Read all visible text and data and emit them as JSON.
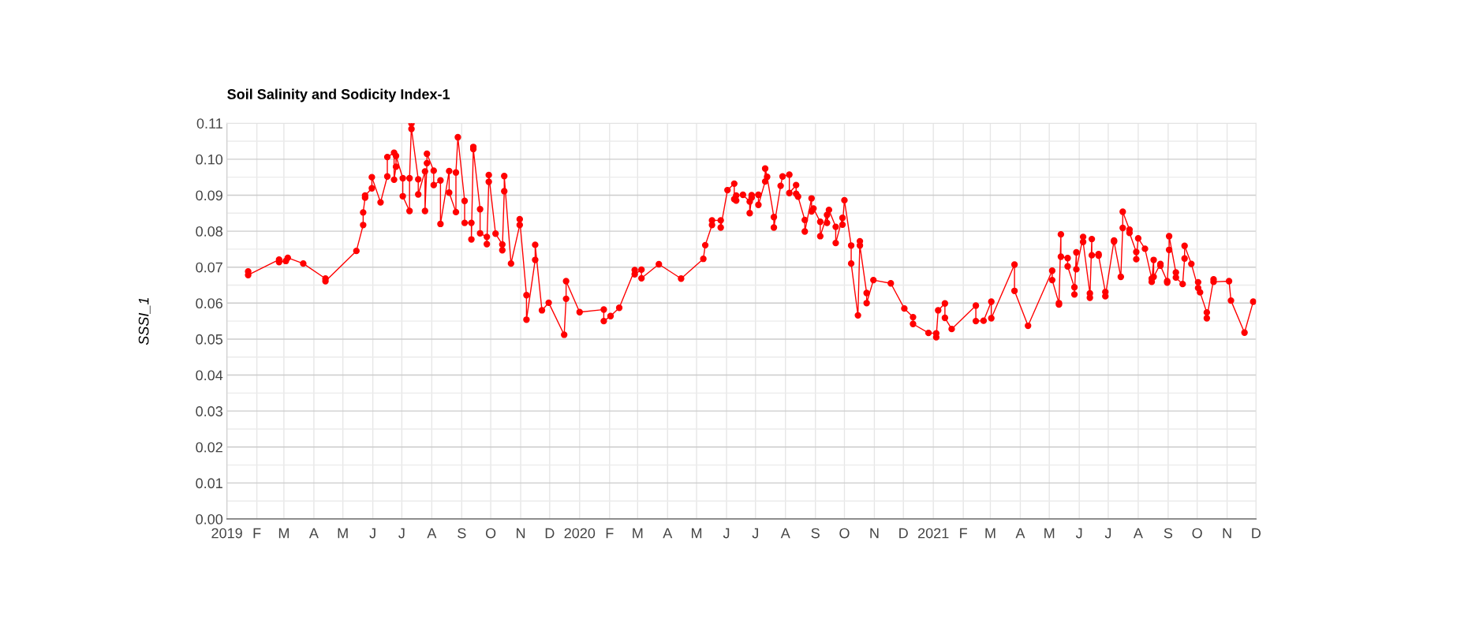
{
  "chart_data": {
    "type": "line",
    "title": "Soil Salinity and Sodicity Index-1",
    "ylabel": "SSSI_1",
    "x": [
      "2019-01-23",
      "2019-01-23",
      "2019-02-24",
      "2019-02-24",
      "2019-03-03",
      "2019-03-05",
      "2019-03-21",
      "2019-04-13",
      "2019-04-13",
      "2019-05-15",
      "2019-05-22",
      "2019-05-22",
      "2019-05-24",
      "2019-05-24",
      "2019-05-31",
      "2019-05-31",
      "2019-06-09",
      "2019-06-16",
      "2019-06-16",
      "2019-06-23",
      "2019-06-23",
      "2019-06-25",
      "2019-06-25",
      "2019-07-02",
      "2019-07-02",
      "2019-07-09",
      "2019-07-09",
      "2019-07-11",
      "2019-07-11",
      "2019-07-18",
      "2019-07-18",
      "2019-07-25",
      "2019-07-25",
      "2019-07-27",
      "2019-07-27",
      "2019-08-03",
      "2019-08-03",
      "2019-08-10",
      "2019-08-10",
      "2019-08-19",
      "2019-08-19",
      "2019-08-26",
      "2019-08-26",
      "2019-08-28",
      "2019-09-04",
      "2019-09-04",
      "2019-09-11",
      "2019-09-11",
      "2019-09-13",
      "2019-09-13",
      "2019-09-20",
      "2019-09-20",
      "2019-09-27",
      "2019-09-27",
      "2019-09-29",
      "2019-09-29",
      "2019-10-06",
      "2019-10-13",
      "2019-10-13",
      "2019-10-15",
      "2019-10-15",
      "2019-10-22",
      "2019-10-31",
      "2019-10-31",
      "2019-11-07",
      "2019-11-07",
      "2019-11-16",
      "2019-11-16",
      "2019-11-23",
      "2019-11-30",
      "2019-12-16",
      "2019-12-18",
      "2019-12-18",
      "2020-01-01",
      "2020-01-26",
      "2020-01-26",
      "2020-02-02",
      "2020-02-11",
      "2020-02-27",
      "2020-02-27",
      "2020-03-05",
      "2020-03-05",
      "2020-03-23",
      "2020-04-15",
      "2020-05-08",
      "2020-05-10",
      "2020-05-17",
      "2020-05-17",
      "2020-05-26",
      "2020-05-26",
      "2020-06-02",
      "2020-06-09",
      "2020-06-09",
      "2020-06-11",
      "2020-06-11",
      "2020-06-18",
      "2020-06-25",
      "2020-06-25",
      "2020-06-27",
      "2020-06-27",
      "2020-07-04",
      "2020-07-04",
      "2020-07-11",
      "2020-07-11",
      "2020-07-13",
      "2020-07-20",
      "2020-07-20",
      "2020-07-27",
      "2020-07-29",
      "2020-08-05",
      "2020-08-05",
      "2020-08-12",
      "2020-08-12",
      "2020-08-14",
      "2020-08-21",
      "2020-08-21",
      "2020-08-28",
      "2020-08-28",
      "2020-08-30",
      "2020-09-06",
      "2020-09-06",
      "2020-09-13",
      "2020-09-13",
      "2020-09-15",
      "2020-09-22",
      "2020-09-22",
      "2020-09-29",
      "2020-09-29",
      "2020-10-01",
      "2020-10-08",
      "2020-10-08",
      "2020-10-15",
      "2020-10-17",
      "2020-10-17",
      "2020-10-24",
      "2020-10-24",
      "2020-10-31",
      "2020-11-18",
      "2020-12-02",
      "2020-12-11",
      "2020-12-11",
      "2020-12-27",
      "2021-01-04",
      "2021-01-04",
      "2021-01-06",
      "2021-01-13",
      "2021-01-13",
      "2021-01-20",
      "2021-02-14",
      "2021-02-14",
      "2021-02-22",
      "2021-03-02",
      "2021-03-02",
      "2021-03-26",
      "2021-03-26",
      "2021-04-09",
      "2021-05-04",
      "2021-05-04",
      "2021-05-11",
      "2021-05-11",
      "2021-05-13",
      "2021-05-13",
      "2021-05-20",
      "2021-05-20",
      "2021-05-27",
      "2021-05-27",
      "2021-05-29",
      "2021-05-29",
      "2021-06-05",
      "2021-06-05",
      "2021-06-12",
      "2021-06-12",
      "2021-06-14",
      "2021-06-14",
      "2021-06-21",
      "2021-06-21",
      "2021-06-28",
      "2021-06-28",
      "2021-07-07",
      "2021-07-07",
      "2021-07-14",
      "2021-07-16",
      "2021-07-16",
      "2021-07-23",
      "2021-07-23",
      "2021-07-30",
      "2021-07-30",
      "2021-08-01",
      "2021-08-08",
      "2021-08-15",
      "2021-08-15",
      "2021-08-17",
      "2021-08-17",
      "2021-08-24",
      "2021-08-24",
      "2021-08-31",
      "2021-08-31",
      "2021-09-02",
      "2021-09-02",
      "2021-09-09",
      "2021-09-09",
      "2021-09-16",
      "2021-09-18",
      "2021-09-18",
      "2021-09-25",
      "2021-10-02",
      "2021-10-02",
      "2021-10-04",
      "2021-10-11",
      "2021-10-11",
      "2021-10-18",
      "2021-10-18",
      "2021-11-03",
      "2021-11-05",
      "2021-11-19",
      "2021-11-28"
    ],
    "series": [
      {
        "color": "#ff0000",
        "values": [
          0.0688,
          0.0678,
          0.0721,
          0.0714,
          0.0717,
          0.0726,
          0.071,
          0.0668,
          0.0661,
          0.0745,
          0.0817,
          0.0852,
          0.0893,
          0.0899,
          0.0919,
          0.095,
          0.088,
          0.0952,
          0.1006,
          0.1018,
          0.0943,
          0.0979,
          0.1009,
          0.0947,
          0.0897,
          0.0856,
          0.0947,
          0.1099,
          0.1084,
          0.0944,
          0.0902,
          0.0966,
          0.0856,
          0.0989,
          0.1015,
          0.0968,
          0.0928,
          0.0941,
          0.082,
          0.0967,
          0.0907,
          0.0853,
          0.0963,
          0.1061,
          0.0884,
          0.0823,
          0.0823,
          0.0777,
          0.1034,
          0.1028,
          0.0861,
          0.0794,
          0.0784,
          0.0764,
          0.0937,
          0.0956,
          0.0793,
          0.0763,
          0.0747,
          0.0911,
          0.0953,
          0.071,
          0.0817,
          0.0833,
          0.0622,
          0.0554,
          0.072,
          0.0762,
          0.058,
          0.0601,
          0.0512,
          0.0612,
          0.0661,
          0.0575,
          0.0582,
          0.055,
          0.0564,
          0.0587,
          0.0692,
          0.068,
          0.0693,
          0.0669,
          0.0708,
          0.0668,
          0.0723,
          0.0761,
          0.0817,
          0.083,
          0.083,
          0.081,
          0.0914,
          0.0932,
          0.0889,
          0.0885,
          0.0899,
          0.0901,
          0.0882,
          0.085,
          0.0893,
          0.09,
          0.0901,
          0.0873,
          0.0938,
          0.0974,
          0.0951,
          0.0839,
          0.081,
          0.0926,
          0.0952,
          0.0957,
          0.0906,
          0.0928,
          0.0904,
          0.0896,
          0.0831,
          0.0799,
          0.0891,
          0.0855,
          0.0863,
          0.0826,
          0.0786,
          0.0845,
          0.0823,
          0.0859,
          0.0812,
          0.0767,
          0.0837,
          0.0818,
          0.0886,
          0.076,
          0.071,
          0.0566,
          0.0772,
          0.076,
          0.0628,
          0.06,
          0.0664,
          0.0655,
          0.0585,
          0.0561,
          0.0542,
          0.0517,
          0.0516,
          0.0505,
          0.058,
          0.0599,
          0.0559,
          0.0528,
          0.0593,
          0.055,
          0.0551,
          0.0604,
          0.0558,
          0.0707,
          0.0634,
          0.0537,
          0.069,
          0.0664,
          0.06,
          0.0596,
          0.0791,
          0.0729,
          0.0725,
          0.0702,
          0.0644,
          0.0624,
          0.0741,
          0.0694,
          0.0784,
          0.077,
          0.0627,
          0.0615,
          0.0778,
          0.0733,
          0.0736,
          0.0732,
          0.0631,
          0.0619,
          0.0774,
          0.0771,
          0.0673,
          0.0809,
          0.0854,
          0.0804,
          0.0795,
          0.0742,
          0.0722,
          0.078,
          0.0751,
          0.0668,
          0.0659,
          0.072,
          0.0673,
          0.0709,
          0.0704,
          0.0661,
          0.0657,
          0.0748,
          0.0786,
          0.0685,
          0.0671,
          0.0653,
          0.0724,
          0.0759,
          0.0709,
          0.0642,
          0.0658,
          0.063,
          0.0574,
          0.0558,
          0.0666,
          0.0659,
          0.0661,
          0.0607,
          0.0518,
          0.0604
        ]
      }
    ],
    "xlim": [
      "2019-01-01",
      "2021-12-01"
    ],
    "xticks": [
      {
        "value": "2019-01-01",
        "label": "2019"
      },
      {
        "value": "2019-02-01",
        "label": "F"
      },
      {
        "value": "2019-03-01",
        "label": "M"
      },
      {
        "value": "2019-04-01",
        "label": "A"
      },
      {
        "value": "2019-05-01",
        "label": "M"
      },
      {
        "value": "2019-06-01",
        "label": "J"
      },
      {
        "value": "2019-07-01",
        "label": "J"
      },
      {
        "value": "2019-08-01",
        "label": "A"
      },
      {
        "value": "2019-09-01",
        "label": "S"
      },
      {
        "value": "2019-10-01",
        "label": "O"
      },
      {
        "value": "2019-11-01",
        "label": "N"
      },
      {
        "value": "2019-12-01",
        "label": "D"
      },
      {
        "value": "2020-01-01",
        "label": "2020"
      },
      {
        "value": "2020-02-01",
        "label": "F"
      },
      {
        "value": "2020-03-01",
        "label": "M"
      },
      {
        "value": "2020-04-01",
        "label": "A"
      },
      {
        "value": "2020-05-01",
        "label": "M"
      },
      {
        "value": "2020-06-01",
        "label": "J"
      },
      {
        "value": "2020-07-01",
        "label": "J"
      },
      {
        "value": "2020-08-01",
        "label": "A"
      },
      {
        "value": "2020-09-01",
        "label": "S"
      },
      {
        "value": "2020-10-01",
        "label": "O"
      },
      {
        "value": "2020-11-01",
        "label": "N"
      },
      {
        "value": "2020-12-01",
        "label": "D"
      },
      {
        "value": "2021-01-01",
        "label": "2021"
      },
      {
        "value": "2021-02-01",
        "label": "F"
      },
      {
        "value": "2021-03-01",
        "label": "M"
      },
      {
        "value": "2021-04-01",
        "label": "A"
      },
      {
        "value": "2021-05-01",
        "label": "M"
      },
      {
        "value": "2021-06-01",
        "label": "J"
      },
      {
        "value": "2021-07-01",
        "label": "J"
      },
      {
        "value": "2021-08-01",
        "label": "A"
      },
      {
        "value": "2021-09-01",
        "label": "S"
      },
      {
        "value": "2021-10-01",
        "label": "O"
      },
      {
        "value": "2021-11-01",
        "label": "N"
      },
      {
        "value": "2021-12-01",
        "label": "D"
      }
    ],
    "ylim": [
      0,
      0.11
    ],
    "yticks": [
      {
        "value": 0,
        "label": "0.00"
      },
      {
        "value": 0.005,
        "label": null
      },
      {
        "value": 0.01,
        "label": "0.01"
      },
      {
        "value": 0.015,
        "label": null
      },
      {
        "value": 0.02,
        "label": "0.02"
      },
      {
        "value": 0.025,
        "label": null
      },
      {
        "value": 0.03,
        "label": "0.03"
      },
      {
        "value": 0.035,
        "label": null
      },
      {
        "value": 0.04,
        "label": "0.04"
      },
      {
        "value": 0.045,
        "label": null
      },
      {
        "value": 0.05,
        "label": "0.05"
      },
      {
        "value": 0.055,
        "label": null
      },
      {
        "value": 0.06,
        "label": "0.06"
      },
      {
        "value": 0.065,
        "label": null
      },
      {
        "value": 0.07,
        "label": "0.07"
      },
      {
        "value": 0.075,
        "label": null
      },
      {
        "value": 0.08,
        "label": "0.08"
      },
      {
        "value": 0.085,
        "label": null
      },
      {
        "value": 0.09,
        "label": "0.09"
      },
      {
        "value": 0.095,
        "label": null
      },
      {
        "value": 0.1,
        "label": "0.10"
      },
      {
        "value": 0.105,
        "label": null
      },
      {
        "value": 0.11,
        "label": "0.11"
      }
    ],
    "grid": true,
    "marker": "circle",
    "line_style": "solid"
  }
}
